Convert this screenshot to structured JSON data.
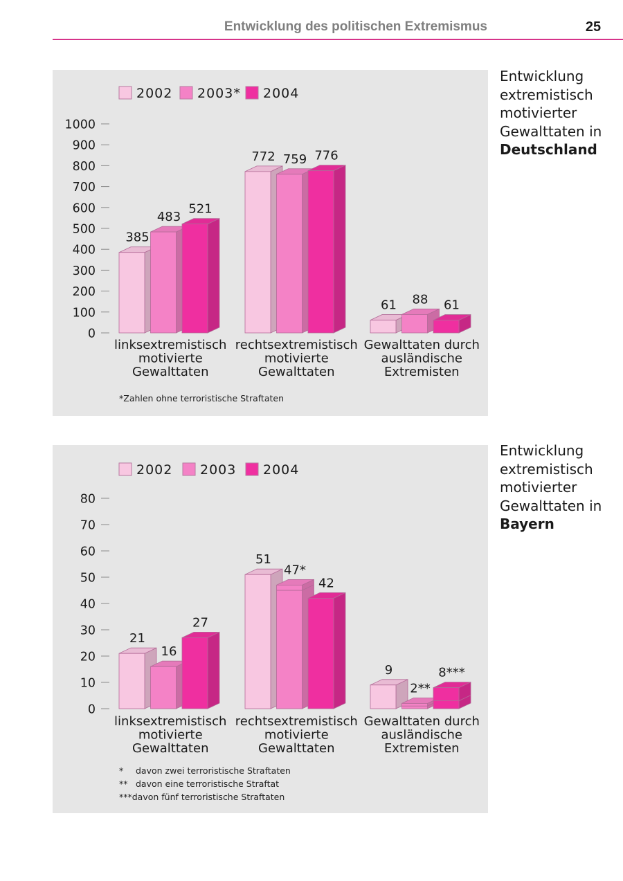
{
  "header": {
    "title": "Entwicklung des politischen Extremismus",
    "page_number": "25"
  },
  "colors": {
    "c2002": "#f8c7e1",
    "c2003": "#f482c6",
    "c2004": "#ef2fa0",
    "accent": "#d6338a",
    "panel": "#e6e6e6"
  },
  "chart_data": [
    {
      "type": "bar",
      "title": "Entwicklung extremistisch motivierter Gewalttaten in Deutschland",
      "categories": [
        [
          "linksextremistisch",
          "motivierte",
          "Gewalttaten"
        ],
        [
          "rechtsextremistisch",
          "motivierte",
          "Gewalttaten"
        ],
        [
          "Gewalttaten durch",
          "ausländische",
          "Extremisten"
        ]
      ],
      "series": [
        {
          "name": "2002",
          "values": [
            385,
            772,
            61
          ],
          "labels": [
            "385",
            "772",
            "61"
          ]
        },
        {
          "name": "2003*",
          "values": [
            483,
            759,
            88
          ],
          "labels": [
            "483",
            "759",
            "88"
          ]
        },
        {
          "name": "2004",
          "values": [
            521,
            776,
            61
          ],
          "labels": [
            "521",
            "776",
            "61"
          ]
        }
      ],
      "yticks": [
        0,
        100,
        200,
        300,
        400,
        500,
        600,
        700,
        800,
        900,
        1000
      ],
      "ylim": [
        0,
        1000
      ],
      "legend": "top-left",
      "footnotes": [
        {
          "mark": "",
          "text": "*Zahlen ohne terroristische Straftaten"
        }
      ],
      "caption": {
        "lines": [
          "Entwicklung",
          "extremistisch",
          "motivierter",
          "Gewalttaten in"
        ],
        "bold": "Deutschland"
      }
    },
    {
      "type": "bar",
      "title": "Entwicklung extremistisch motivierter Gewalttaten in Bayern",
      "categories": [
        [
          "linksextremistisch",
          "motivierte",
          "Gewalttaten"
        ],
        [
          "rechtsextremistisch",
          "motivierte",
          "Gewalttaten"
        ],
        [
          "Gewalttaten durch",
          "ausländische",
          "Extremisten"
        ]
      ],
      "series": [
        {
          "name": "2002",
          "values": [
            21,
            51,
            9
          ],
          "labels": [
            "21",
            "51",
            "9"
          ]
        },
        {
          "name": "2003",
          "values": [
            16,
            47,
            2
          ],
          "labels": [
            "16",
            "47*",
            "2**"
          ]
        },
        {
          "name": "2004",
          "values": [
            27,
            42,
            8
          ],
          "labels": [
            "27",
            "42",
            "8***"
          ]
        }
      ],
      "terrorist_share": {
        "2003": [
          0,
          2,
          1
        ],
        "2004": [
          0,
          0,
          5
        ]
      },
      "yticks": [
        0,
        10,
        20,
        30,
        40,
        50,
        60,
        70,
        80
      ],
      "ylim": [
        0,
        80
      ],
      "legend": "top-left",
      "footnotes": [
        {
          "mark": "*",
          "text": "davon zwei terroristische Straftaten"
        },
        {
          "mark": "**",
          "text": "davon eine terroristische Straftat"
        },
        {
          "mark": "***",
          "text": "davon fünf terroristische Straftaten"
        }
      ],
      "caption": {
        "lines": [
          "Entwicklung",
          "extremistisch",
          "motivierter",
          "Gewalttaten in"
        ],
        "bold": "Bayern"
      }
    }
  ]
}
